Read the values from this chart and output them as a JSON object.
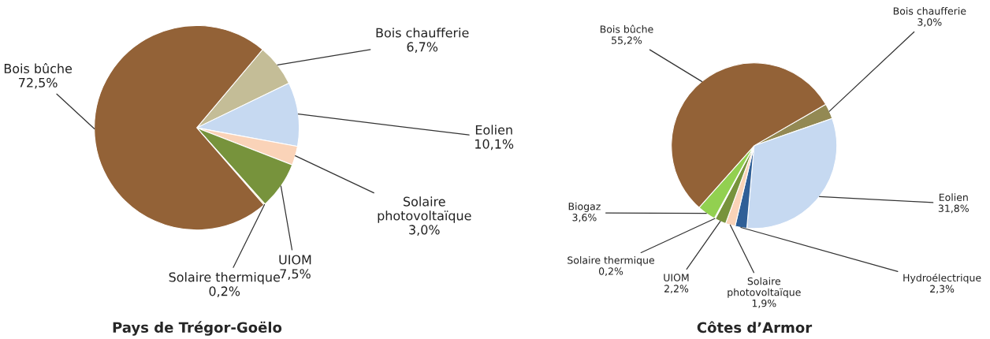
{
  "chart_data": [
    {
      "type": "pie",
      "title": "Pays de Trégor-Goëlo",
      "categories": [
        "Bois chaufferie",
        "Eolien",
        "Solaire photovoltaïque",
        "UIOM",
        "Solaire thermique",
        "Bois bûche"
      ],
      "values": [
        6.7,
        10.1,
        3.0,
        7.5,
        0.2,
        72.5
      ],
      "colors": [
        "#c4bd97",
        "#c6d9f1",
        "#fad3b8",
        "#77933c",
        "#e6d86a",
        "#936237"
      ],
      "value_labels": [
        "6,7%",
        "10,1%",
        "3,0%",
        "7,5%",
        "0,2%",
        "72,5%"
      ]
    },
    {
      "type": "pie",
      "title": "Côtes d’Armor",
      "categories": [
        "Bois chaufferie",
        "Eolien",
        "Hydroélectrique",
        "Solaire photovoltaïque",
        "UIOM",
        "Solaire thermique",
        "Biogaz",
        "Bois bûche"
      ],
      "values": [
        3.0,
        31.8,
        2.3,
        1.9,
        2.2,
        0.2,
        3.6,
        55.2
      ],
      "colors": [
        "#938953",
        "#c6d9f1",
        "#2f5f97",
        "#fad3b8",
        "#77933c",
        "#e6d86a",
        "#92d050",
        "#936237"
      ],
      "value_labels": [
        "3,0%",
        "31,8%",
        "2,3%",
        "1,9%",
        "2,2%",
        "0,2%",
        "3,6%",
        "55,2%"
      ]
    }
  ]
}
